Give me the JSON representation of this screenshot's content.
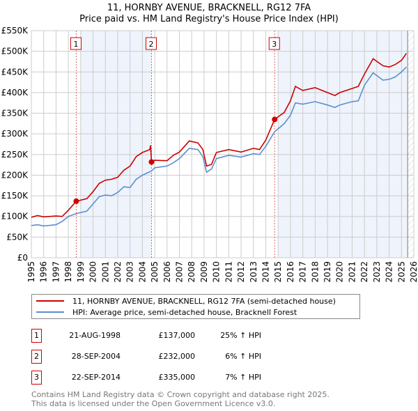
{
  "title_line1": "11, HORNBY AVENUE, BRACKNELL, RG12 7FA",
  "title_line2": "Price paid vs. HM Land Registry's House Price Index (HPI)",
  "chart_data": {
    "type": "line",
    "title": "11, HORNBY AVENUE, BRACKNELL, RG12 7FA — Price paid vs. HM Land Registry's House Price Index (HPI)",
    "xlim": [
      1995,
      2026
    ],
    "ylim": [
      0,
      550000
    ],
    "x_ticks": [
      "1995",
      "1996",
      "1997",
      "1998",
      "1999",
      "2000",
      "2001",
      "2002",
      "2003",
      "2004",
      "2005",
      "2006",
      "2007",
      "2008",
      "2009",
      "2010",
      "2011",
      "2012",
      "2013",
      "2014",
      "2015",
      "2016",
      "2017",
      "2018",
      "2019",
      "2020",
      "2021",
      "2022",
      "2023",
      "2024",
      "2025",
      "2026"
    ],
    "y_ticks": [
      {
        "v": 0,
        "label": "£0"
      },
      {
        "v": 50000,
        "label": "£50K"
      },
      {
        "v": 100000,
        "label": "£100K"
      },
      {
        "v": 150000,
        "label": "£150K"
      },
      {
        "v": 200000,
        "label": "£200K"
      },
      {
        "v": 250000,
        "label": "£250K"
      },
      {
        "v": 300000,
        "label": "£300K"
      },
      {
        "v": 350000,
        "label": "£350K"
      },
      {
        "v": 400000,
        "label": "£400K"
      },
      {
        "v": 450000,
        "label": "£450K"
      },
      {
        "v": 500000,
        "label": "£500K"
      },
      {
        "v": 550000,
        "label": "£550K"
      }
    ],
    "grid": true,
    "shaded_ranges": [
      [
        1999,
        2004.74
      ],
      [
        2015,
        2025.5
      ]
    ],
    "forecast_hatch_from": 2025.5,
    "series": [
      {
        "name": "11, HORNBY AVENUE, BRACKNELL, RG12 7FA (semi-detached house)",
        "color": "#cc0000",
        "x": [
          1995,
          1995.5,
          1996,
          1997,
          1997.5,
          1998,
          1998.64,
          1999.5,
          2000,
          2000.5,
          2001,
          2001.5,
          2002,
          2002.5,
          2003,
          2003.5,
          2004,
          2004.6,
          2004.66,
          2004.74,
          2005,
          2006,
          2006.5,
          2007,
          2007.8,
          2008.5,
          2008.9,
          2009.2,
          2009.6,
          2010,
          2011,
          2012,
          2013,
          2013.5,
          2014,
          2014.72,
          2015.5,
          2016,
          2016.4,
          2017,
          2018,
          2019,
          2019.6,
          2020,
          2021,
          2021.5,
          2022,
          2022.7,
          2023.5,
          2024,
          2024.5,
          2025,
          2025.4
        ],
        "y": [
          98000,
          102000,
          99000,
          101000,
          100000,
          115000,
          137000,
          143000,
          160000,
          180000,
          188000,
          190000,
          195000,
          212000,
          222000,
          245000,
          255000,
          262000,
          272000,
          232000,
          236000,
          235000,
          248000,
          256000,
          283000,
          278000,
          262000,
          222000,
          226000,
          255000,
          262000,
          256000,
          265000,
          262000,
          285000,
          335000,
          352000,
          380000,
          415000,
          405000,
          412000,
          400000,
          393000,
          400000,
          410000,
          415000,
          445000,
          482000,
          465000,
          462000,
          468000,
          478000,
          495000
        ]
      },
      {
        "name": "HPI: Average price, semi-detached house, Bracknell Forest",
        "color": "#5b8fd0",
        "x": [
          1995,
          1995.5,
          1996,
          1997,
          1997.5,
          1998,
          1998.64,
          1999.5,
          2000,
          2000.5,
          2001,
          2001.5,
          2002,
          2002.5,
          2003,
          2003.5,
          2004,
          2004.74,
          2005,
          2006,
          2006.5,
          2007,
          2007.8,
          2008.5,
          2008.9,
          2009.2,
          2009.6,
          2010,
          2011,
          2012,
          2013,
          2013.5,
          2014,
          2014.72,
          2015.5,
          2016,
          2016.4,
          2017,
          2018,
          2019,
          2019.6,
          2020,
          2021,
          2021.5,
          2022,
          2022.7,
          2023.5,
          2024,
          2024.5,
          2025,
          2025.4
        ],
        "y": [
          78000,
          80000,
          77000,
          80000,
          88000,
          100000,
          107000,
          113000,
          130000,
          148000,
          152000,
          150000,
          158000,
          172000,
          170000,
          190000,
          200000,
          210000,
          218000,
          222000,
          230000,
          240000,
          265000,
          262000,
          245000,
          207000,
          215000,
          240000,
          248000,
          244000,
          252000,
          250000,
          270000,
          305000,
          325000,
          345000,
          375000,
          372000,
          378000,
          370000,
          364000,
          370000,
          378000,
          380000,
          418000,
          448000,
          430000,
          432000,
          438000,
          450000,
          462000
        ]
      }
    ],
    "sales": [
      {
        "label": "1",
        "x": 1998.64,
        "price": 137000
      },
      {
        "label": "2",
        "x": 2004.74,
        "price": 232000
      },
      {
        "label": "3",
        "x": 2014.72,
        "price": 335000
      }
    ]
  },
  "legend": {
    "property": "11, HORNBY AVENUE, BRACKNELL, RG12 7FA (semi-detached house)",
    "hpi": "HPI: Average price, semi-detached house, Bracknell Forest"
  },
  "transactions": [
    {
      "num": "1",
      "date": "21-AUG-1998",
      "price": "£137,000",
      "hpi": "25% ↑ HPI"
    },
    {
      "num": "2",
      "date": "28-SEP-2004",
      "price": "£232,000",
      "hpi": "6% ↑ HPI"
    },
    {
      "num": "3",
      "date": "22-SEP-2014",
      "price": "£335,000",
      "hpi": "7% ↑ HPI"
    }
  ],
  "footer_line1": "Contains HM Land Registry data © Crown copyright and database right 2025.",
  "footer_line2": "This data is licensed under the Open Government Licence v3.0."
}
